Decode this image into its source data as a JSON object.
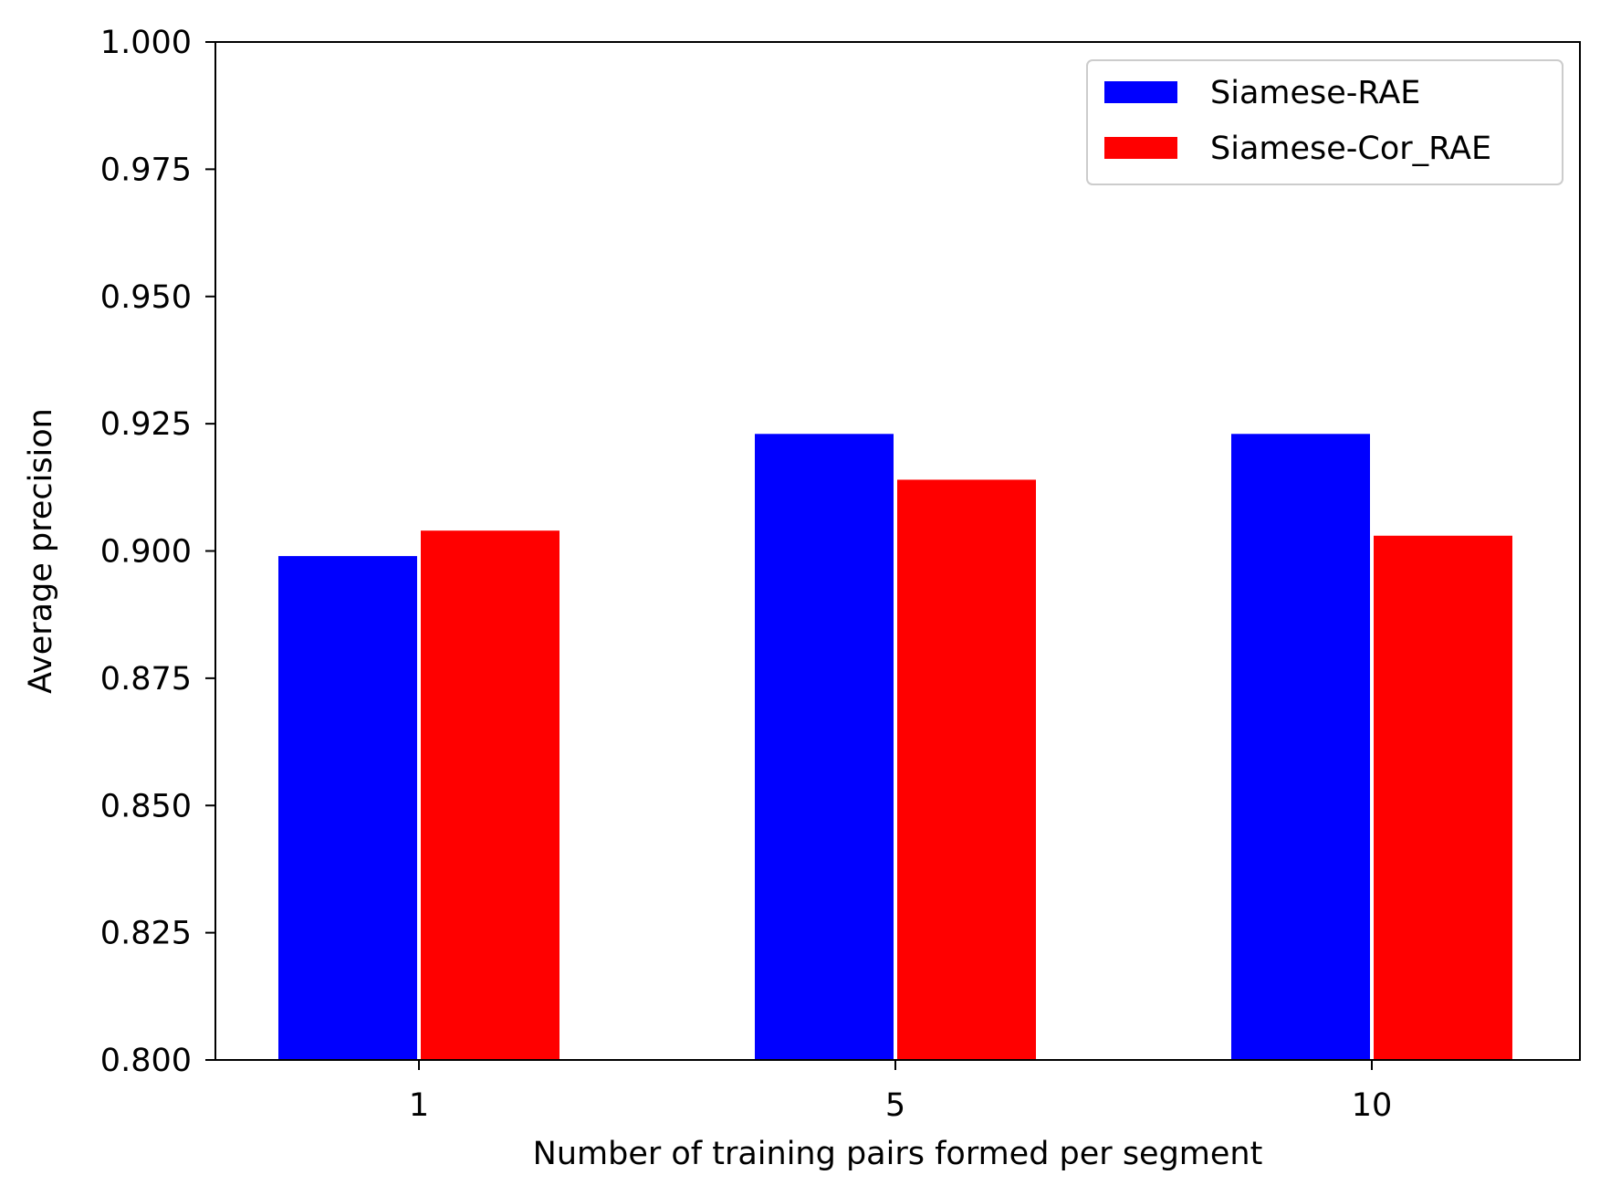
{
  "chart_data": {
    "type": "bar",
    "title": "",
    "xlabel": "Number of training pairs formed per segment",
    "ylabel": "Average precision",
    "categories": [
      "1",
      "5",
      "10"
    ],
    "series": [
      {
        "name": "Siamese-RAE",
        "color": "#0000ff",
        "values": [
          0.899,
          0.923,
          0.923
        ]
      },
      {
        "name": "Siamese-Cor_RAE",
        "color": "#ff0000",
        "values": [
          0.904,
          0.914,
          0.903
        ]
      }
    ],
    "ylim": [
      0.8,
      1.0
    ],
    "yticks": [
      "0.800",
      "0.825",
      "0.850",
      "0.875",
      "0.900",
      "0.925",
      "0.950",
      "0.975",
      "1.000"
    ],
    "grid": false,
    "legend_position": "top-right"
  }
}
